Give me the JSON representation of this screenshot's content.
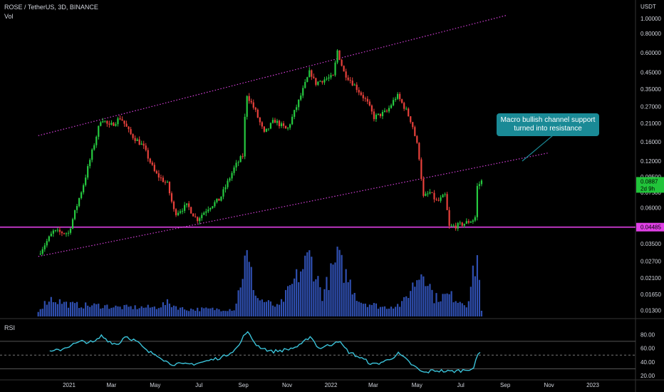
{
  "header": {
    "symbol_line": "ROSE / TetherUS, 3D, BINANCE",
    "volume_label": "Vol",
    "rsi_label": "RSI"
  },
  "annotation": {
    "line1": "Macro bullish channel support",
    "line2": "turned into resistance",
    "color": "#1a8a96"
  },
  "colors": {
    "up": "#26c940",
    "down": "#e8413b",
    "channel": "#d23fd6",
    "support": "#e040e6",
    "volume": "#2f4fb0",
    "rsi": "#3bc2d8",
    "price_badge": "#21c43a",
    "support_badge": "#e040e6"
  },
  "chart_data": [
    {
      "type": "candlestick",
      "y_axis_unit": "USDT",
      "y_scale": "log",
      "y_ticks": [
        "1.00000",
        "0.80000",
        "0.60000",
        "0.45000",
        "0.35000",
        "0.27000",
        "0.21000",
        "0.16000",
        "0.12000",
        "0.09500",
        "0.07500",
        "0.06000",
        "0.04485",
        "0.03500",
        "0.02700",
        "0.02100",
        "0.01650",
        "0.01300"
      ],
      "ylim": [
        0.0115,
        1.25
      ],
      "x_ticks": [
        "2021",
        "Mar",
        "May",
        "Jul",
        "Sep",
        "Nov",
        "2022",
        "Mar",
        "May",
        "Jul",
        "Sep",
        "Nov",
        "2023"
      ],
      "price_path": [
        [
          "2020-11-19",
          0.03
        ],
        [
          "2020-12-10",
          0.042
        ],
        [
          "2020-12-31",
          0.041
        ],
        [
          "2021-01-21",
          0.085
        ],
        [
          "2021-02-05",
          0.155
        ],
        [
          "2021-02-15",
          0.23
        ],
        [
          "2021-02-26",
          0.2
        ],
        [
          "2021-03-14",
          0.23
        ],
        [
          "2021-03-27",
          0.18
        ],
        [
          "2021-04-14",
          0.15
        ],
        [
          "2021-05-01",
          0.1
        ],
        [
          "2021-05-18",
          0.085
        ],
        [
          "2021-05-28",
          0.055
        ],
        [
          "2021-06-15",
          0.062
        ],
        [
          "2021-06-28",
          0.05
        ],
        [
          "2021-07-14",
          0.06
        ],
        [
          "2021-07-30",
          0.068
        ],
        [
          "2021-08-20",
          0.11
        ],
        [
          "2021-08-31",
          0.13
        ],
        [
          "2021-09-05",
          0.33
        ],
        [
          "2021-09-18",
          0.25
        ],
        [
          "2021-09-30",
          0.18
        ],
        [
          "2021-10-14",
          0.22
        ],
        [
          "2021-11-01",
          0.19
        ],
        [
          "2021-11-18",
          0.3
        ],
        [
          "2021-12-03",
          0.46
        ],
        [
          "2021-12-10",
          0.38
        ],
        [
          "2021-12-19",
          0.4
        ],
        [
          "2022-01-04",
          0.42
        ],
        [
          "2022-01-10",
          0.62
        ],
        [
          "2022-01-19",
          0.45
        ],
        [
          "2022-02-05",
          0.36
        ],
        [
          "2022-02-20",
          0.29
        ],
        [
          "2022-03-02",
          0.23
        ],
        [
          "2022-03-20",
          0.25
        ],
        [
          "2022-04-03",
          0.32
        ],
        [
          "2022-04-15",
          0.26
        ],
        [
          "2022-04-24",
          0.21
        ],
        [
          "2022-05-03",
          0.14
        ],
        [
          "2022-05-10",
          0.07
        ],
        [
          "2022-05-19",
          0.075
        ],
        [
          "2022-05-29",
          0.065
        ],
        [
          "2022-06-09",
          0.072
        ],
        [
          "2022-06-15",
          0.045
        ],
        [
          "2022-06-28",
          0.046
        ],
        [
          "2022-07-09",
          0.048
        ],
        [
          "2022-07-18",
          0.05
        ],
        [
          "2022-07-21",
          0.052
        ],
        [
          "2022-07-24",
          0.082
        ],
        [
          "2022-07-30",
          0.0887
        ]
      ],
      "last_price": "0.0887",
      "countdown": "2d 9h",
      "support_level": {
        "value": 0.04485,
        "label": "0.04485"
      },
      "channel_upper": {
        "from": [
          "2020-11-19",
          0.175
        ],
        "to": [
          "2022-09-03",
          1.05
        ]
      },
      "channel_lower": {
        "from": [
          "2020-11-19",
          0.029
        ],
        "to": [
          "2022-10-30",
          0.135
        ]
      }
    },
    {
      "type": "bar",
      "name": "Vol",
      "shape": [
        [
          "2020-11-19",
          0.1
        ],
        [
          "2020-12-05",
          0.3
        ],
        [
          "2020-12-31",
          0.2
        ],
        [
          "2021-01-21",
          0.18
        ],
        [
          "2021-02-15",
          0.18
        ],
        [
          "2021-03-10",
          0.15
        ],
        [
          "2021-05-01",
          0.15
        ],
        [
          "2021-05-18",
          0.22
        ],
        [
          "2021-06-10",
          0.12
        ],
        [
          "2021-08-20",
          0.12
        ],
        [
          "2021-09-05",
          1.0
        ],
        [
          "2021-09-20",
          0.3
        ],
        [
          "2021-10-20",
          0.15
        ],
        [
          "2021-12-03",
          1.0
        ],
        [
          "2021-12-20",
          0.35
        ],
        [
          "2022-01-10",
          0.95
        ],
        [
          "2022-02-10",
          0.25
        ],
        [
          "2022-03-15",
          0.15
        ],
        [
          "2022-04-10",
          0.2
        ],
        [
          "2022-05-10",
          0.8
        ],
        [
          "2022-05-25",
          0.3
        ],
        [
          "2022-06-15",
          0.35
        ],
        [
          "2022-07-10",
          0.2
        ],
        [
          "2022-07-24",
          1.0
        ],
        [
          "2022-07-30",
          0.12
        ]
      ]
    },
    {
      "type": "line",
      "name": "RSI",
      "y_ticks": [
        "80.00",
        "60.00",
        "40.00",
        "20.00"
      ],
      "ylim": [
        14,
        102
      ],
      "bands": [
        70,
        50,
        30
      ],
      "values": [
        [
          "2020-12-05",
          54
        ],
        [
          "2020-12-20",
          58
        ],
        [
          "2021-01-05",
          65
        ],
        [
          "2021-01-20",
          70
        ],
        [
          "2021-02-05",
          68
        ],
        [
          "2021-02-15",
          78
        ],
        [
          "2021-02-26",
          70
        ],
        [
          "2021-03-10",
          65
        ],
        [
          "2021-03-20",
          78
        ],
        [
          "2021-04-05",
          70
        ],
        [
          "2021-04-20",
          55
        ],
        [
          "2021-05-05",
          50
        ],
        [
          "2021-05-20",
          38
        ],
        [
          "2021-06-10",
          36
        ],
        [
          "2021-06-28",
          38
        ],
        [
          "2021-07-15",
          42
        ],
        [
          "2021-08-05",
          48
        ],
        [
          "2021-08-25",
          62
        ],
        [
          "2021-09-05",
          85
        ],
        [
          "2021-09-20",
          64
        ],
        [
          "2021-10-10",
          55
        ],
        [
          "2021-11-01",
          58
        ],
        [
          "2021-11-20",
          64
        ],
        [
          "2021-12-03",
          78
        ],
        [
          "2021-12-15",
          60
        ],
        [
          "2022-01-01",
          65
        ],
        [
          "2022-01-10",
          72
        ],
        [
          "2022-01-25",
          55
        ],
        [
          "2022-02-15",
          44
        ],
        [
          "2022-03-01",
          36
        ],
        [
          "2022-03-20",
          42
        ],
        [
          "2022-04-05",
          52
        ],
        [
          "2022-04-15",
          44
        ],
        [
          "2022-04-25",
          35
        ],
        [
          "2022-05-10",
          24
        ],
        [
          "2022-05-25",
          28
        ],
        [
          "2022-06-15",
          26
        ],
        [
          "2022-07-05",
          28
        ],
        [
          "2022-07-20",
          32
        ],
        [
          "2022-07-24",
          50
        ],
        [
          "2022-07-30",
          55
        ]
      ]
    }
  ]
}
